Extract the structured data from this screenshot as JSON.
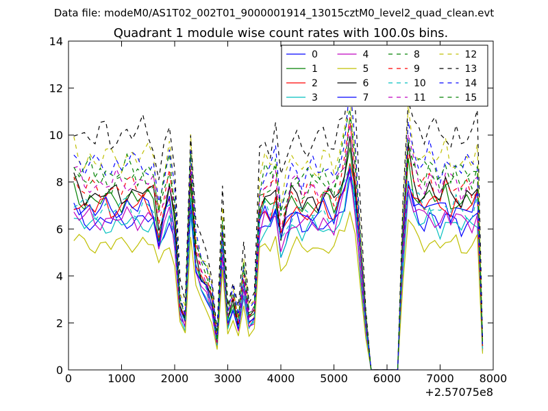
{
  "header": {
    "data_file": "Data file: modeM0/AS1T02_002T01_9000001914_13015cztM0_level2_quad_clean.evt"
  },
  "chart_data": {
    "type": "line",
    "title": "Quadrant 1 module wise count rates with 100.0s bins.",
    "x_offset_label": "+2.57075e8",
    "xlim": [
      0,
      8000
    ],
    "ylim": [
      0,
      14
    ],
    "xticks": [
      0,
      1000,
      2000,
      3000,
      4000,
      5000,
      6000,
      7000,
      8000
    ],
    "yticks": [
      0,
      2,
      4,
      6,
      8,
      10,
      12,
      14
    ],
    "grid": false,
    "legend_position": "top-right",
    "x": [
      100,
      200,
      300,
      400,
      500,
      600,
      700,
      800,
      900,
      1000,
      1100,
      1200,
      1300,
      1400,
      1500,
      1600,
      1700,
      1800,
      1900,
      2000,
      2100,
      2200,
      2300,
      2400,
      2500,
      2600,
      2700,
      2800,
      2900,
      3000,
      3100,
      3200,
      3300,
      3400,
      3500,
      3600,
      3700,
      3800,
      3900,
      4000,
      4100,
      4200,
      4300,
      4400,
      4500,
      4600,
      4700,
      4800,
      4900,
      5000,
      5100,
      5200,
      5300,
      5400,
      5500,
      5600,
      5700,
      5800,
      5900,
      6000,
      6100,
      6200,
      6300,
      6400,
      6500,
      6600,
      6700,
      6800,
      6900,
      7000,
      7100,
      7200,
      7300,
      7400,
      7500,
      7600,
      7700,
      7800
    ],
    "base_profile": [
      0.8,
      0.78,
      0.76,
      0.77,
      0.75,
      0.76,
      0.77,
      0.75,
      0.77,
      0.76,
      0.78,
      0.77,
      0.76,
      0.78,
      0.77,
      0.76,
      0.62,
      0.72,
      0.8,
      0.65,
      0.28,
      0.22,
      0.82,
      0.5,
      0.42,
      0.38,
      0.3,
      0.12,
      0.58,
      0.22,
      0.3,
      0.2,
      0.4,
      0.22,
      0.25,
      0.7,
      0.76,
      0.74,
      0.8,
      0.6,
      0.68,
      0.75,
      0.76,
      0.72,
      0.74,
      0.75,
      0.73,
      0.76,
      0.74,
      0.72,
      0.8,
      0.86,
      1.0,
      0.82,
      0.5,
      0.2,
      0.0,
      0.0,
      0.0,
      0.0,
      0.0,
      0.0,
      0.55,
      0.92,
      0.82,
      0.78,
      0.76,
      0.8,
      0.77,
      0.74,
      0.79,
      0.75,
      0.78,
      0.74,
      0.76,
      0.75,
      0.8,
      0.1
    ],
    "series": [
      {
        "name": "0",
        "level": 8.3,
        "color": "#0000ff",
        "dashed": false
      },
      {
        "name": "1",
        "level": 9.5,
        "color": "#008000",
        "dashed": false
      },
      {
        "name": "2",
        "level": 9.1,
        "color": "#ff0000",
        "dashed": false
      },
      {
        "name": "3",
        "level": 8.1,
        "color": "#00bfbf",
        "dashed": false
      },
      {
        "name": "4",
        "level": 8.4,
        "color": "#bf00bf",
        "dashed": false
      },
      {
        "name": "5",
        "level": 7.0,
        "color": "#bfbf00",
        "dashed": false
      },
      {
        "name": "6",
        "level": 9.8,
        "color": "#000000",
        "dashed": false
      },
      {
        "name": "7",
        "level": 9.0,
        "color": "#0000ff",
        "dashed": false
      },
      {
        "name": "8",
        "level": 10.6,
        "color": "#008000",
        "dashed": true
      },
      {
        "name": "9",
        "level": 10.1,
        "color": "#ff0000",
        "dashed": true
      },
      {
        "name": "10",
        "level": 9.0,
        "color": "#00bfbf",
        "dashed": true
      },
      {
        "name": "11",
        "level": 10.4,
        "color": "#bf00bf",
        "dashed": true
      },
      {
        "name": "12",
        "level": 11.8,
        "color": "#bfbf00",
        "dashed": true
      },
      {
        "name": "13",
        "level": 13.1,
        "color": "#000000",
        "dashed": true
      },
      {
        "name": "14",
        "level": 11.4,
        "color": "#0000ff",
        "dashed": true
      },
      {
        "name": "15",
        "level": 11.0,
        "color": "#008000",
        "dashed": true
      }
    ]
  }
}
